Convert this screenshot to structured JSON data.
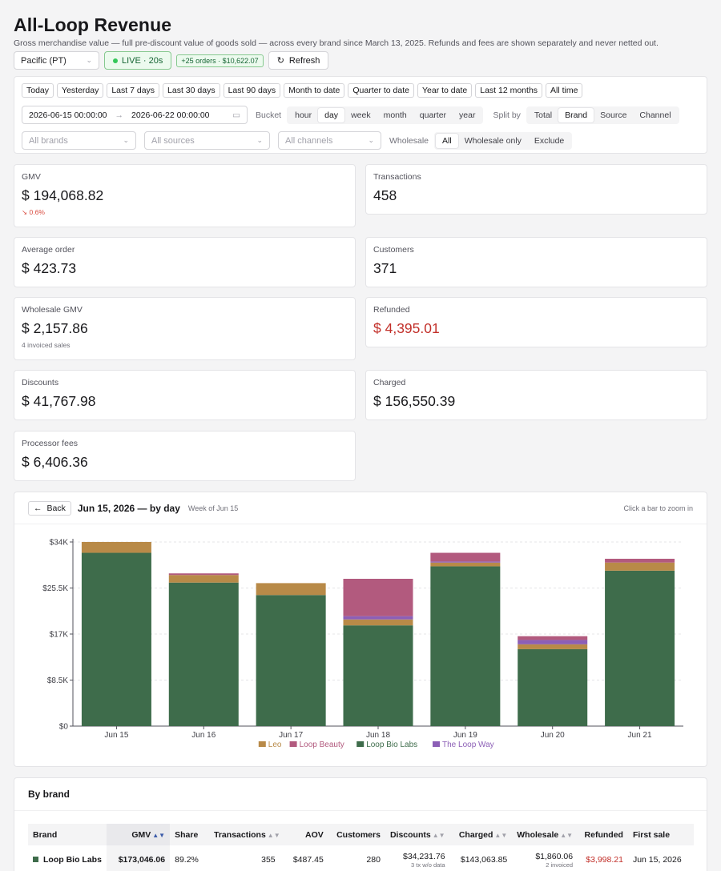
{
  "header": {
    "title": "All-Loop Revenue",
    "subtitle": "Gross merchandise value — full pre-discount value of goods sold — across every brand since March 13, 2025. Refunds and fees are shown separately and never netted out.",
    "timezone": "Pacific (PT)",
    "live_label": "LIVE · 20s",
    "orders_badge": "+25 orders · $10,622.07",
    "refresh_label": "Refresh"
  },
  "filters": {
    "ranges": [
      "Today",
      "Yesterday",
      "Last 7 days",
      "Last 30 days",
      "Last 90 days",
      "Month to date",
      "Quarter to date",
      "Year to date",
      "Last 12 months",
      "All time"
    ],
    "date_from": "2026-06-15 00:00:00",
    "date_to": "2026-06-22 00:00:00",
    "bucket_label": "Bucket",
    "buckets": [
      "hour",
      "day",
      "week",
      "month",
      "quarter",
      "year"
    ],
    "bucket_active": "day",
    "split_label": "Split by",
    "splits": [
      "Total",
      "Brand",
      "Source",
      "Channel"
    ],
    "split_active": "Brand",
    "brands_placeholder": "All brands",
    "sources_placeholder": "All sources",
    "channels_placeholder": "All channels",
    "wholesale_label": "Wholesale",
    "wholesale_opts": [
      "All",
      "Wholesale only",
      "Exclude"
    ],
    "wholesale_active": "All"
  },
  "metrics": {
    "gmv": {
      "label": "GMV",
      "value": "194,068.82",
      "delta": "0.6%"
    },
    "transactions": {
      "label": "Transactions",
      "value": "458"
    },
    "aov": {
      "label": "Average order",
      "value": "423.73"
    },
    "customers": {
      "label": "Customers",
      "value": "371"
    },
    "wholesale": {
      "label": "Wholesale GMV",
      "value": "2,157.86",
      "note": "4 invoiced sales"
    },
    "refunded": {
      "label": "Refunded",
      "value": "4,395.01"
    },
    "discounts": {
      "label": "Discounts",
      "value": "41,767.98"
    },
    "charged": {
      "label": "Charged",
      "value": "156,550.39"
    },
    "fees": {
      "label": "Processor fees",
      "value": "6,406.36"
    },
    "currency": "$"
  },
  "chart_panel": {
    "back_label": "Back",
    "title": "Jun 15, 2026 — by day",
    "subtitle": "Week of Jun 15",
    "hint": "Click a bar to zoom in"
  },
  "chart_data": {
    "type": "bar",
    "stacked": true,
    "categories": [
      "Jun 15",
      "Jun 16",
      "Jun 17",
      "Jun 18",
      "Jun 19",
      "Jun 20",
      "Jun 21"
    ],
    "series": [
      {
        "name": "Loop Bio Labs",
        "color": "#3e6c4b",
        "values": [
          32000,
          26500,
          24200,
          18600,
          29500,
          14200,
          28700
        ]
      },
      {
        "name": "Leo",
        "color": "#b88a48",
        "values": [
          2000,
          1400,
          2200,
          1100,
          700,
          900,
          1500
        ]
      },
      {
        "name": "The Loop Way",
        "color": "#8c5fb6",
        "values": [
          0,
          0,
          0,
          600,
          200,
          800,
          0
        ]
      },
      {
        "name": "Loop Beauty",
        "color": "#b25a7e",
        "values": [
          0,
          300,
          0,
          6900,
          1600,
          700,
          700
        ]
      }
    ],
    "legend_order": [
      "Leo",
      "Loop Beauty",
      "Loop Bio Labs",
      "The Loop Way"
    ],
    "yticks": [
      "$0",
      "$8.5K",
      "$17K",
      "$25.5K",
      "$34K"
    ],
    "ylim": [
      0,
      34000
    ],
    "legend": "bottom"
  },
  "brand_table": {
    "title": "By brand",
    "columns": [
      "Brand",
      "GMV",
      "Share",
      "Transactions",
      "AOV",
      "Customers",
      "Discounts",
      "Charged",
      "Wholesale",
      "Refunded",
      "First sale"
    ],
    "rows": [
      {
        "brand": "Loop Bio Labs",
        "gmv": "$173,046.06",
        "share": "89.2%",
        "transactions": "355",
        "aov": "$487.45",
        "customers": "280",
        "discounts": "$34,231.76",
        "discounts_note": "3 tx w/o data",
        "charged": "$143,063.85",
        "wholesale": "$1,860.06",
        "wholesale_note": "2 invoiced",
        "refunded": "$3,998.21",
        "first_sale": "Jun 15, 2026"
      }
    ]
  }
}
